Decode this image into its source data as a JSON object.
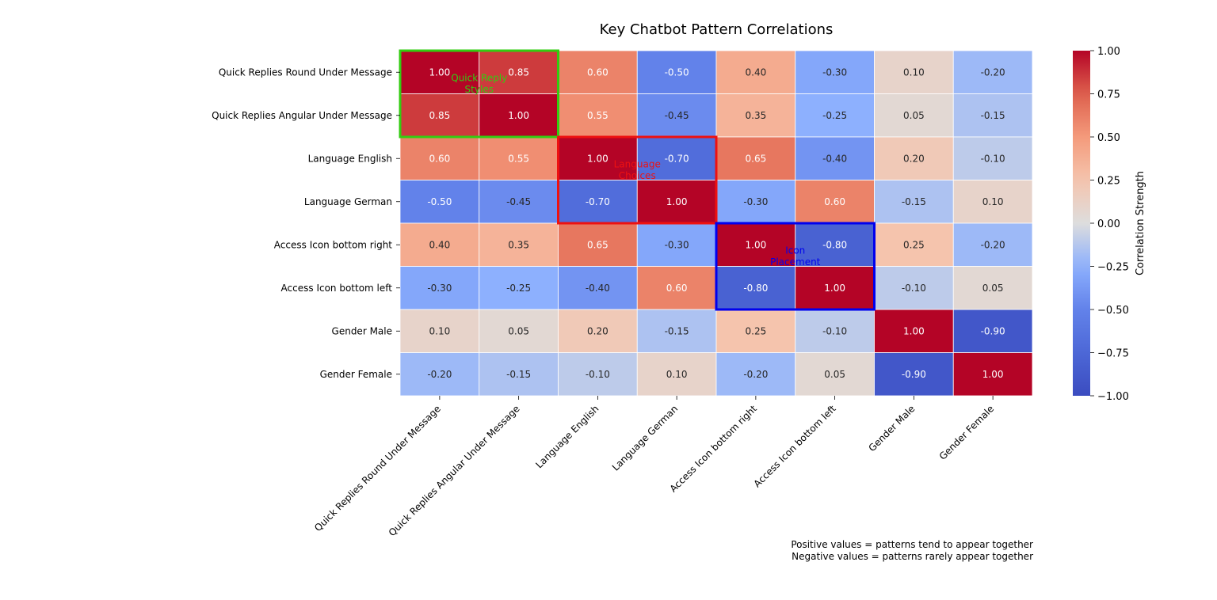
{
  "chart_data": {
    "type": "heatmap",
    "title": "Key Chatbot Pattern Correlations",
    "row_labels": [
      "Quick Replies Round Under Message",
      "Quick Replies Angular Under Message",
      "Language English",
      "Language German",
      "Access Icon bottom right",
      "Access Icon bottom left",
      "Gender Male",
      "Gender Female"
    ],
    "col_labels": [
      "Quick Replies Round Under Message",
      "Quick Replies Angular Under Message",
      "Language English",
      "Language German",
      "Access Icon bottom right",
      "Access Icon bottom left",
      "Gender Male",
      "Gender Female"
    ],
    "values": [
      [
        1.0,
        0.85,
        0.6,
        -0.5,
        0.4,
        -0.3,
        0.1,
        -0.2
      ],
      [
        0.85,
        1.0,
        0.55,
        -0.45,
        0.35,
        -0.25,
        0.05,
        -0.15
      ],
      [
        0.6,
        0.55,
        1.0,
        -0.7,
        0.65,
        -0.4,
        0.2,
        -0.1
      ],
      [
        -0.5,
        -0.45,
        -0.7,
        1.0,
        -0.3,
        0.6,
        -0.15,
        0.1
      ],
      [
        0.4,
        0.35,
        0.65,
        -0.3,
        1.0,
        -0.8,
        0.25,
        -0.2
      ],
      [
        -0.3,
        -0.25,
        -0.4,
        0.6,
        -0.8,
        1.0,
        -0.1,
        0.05
      ],
      [
        0.1,
        0.05,
        0.2,
        -0.15,
        0.25,
        -0.1,
        1.0,
        -0.9
      ],
      [
        -0.2,
        -0.15,
        -0.1,
        0.1,
        -0.2,
        0.05,
        -0.9,
        1.0
      ]
    ],
    "colormap": "coolwarm",
    "vmin": -1.0,
    "vmax": 1.0,
    "colorbar": {
      "label": "Correlation Strength",
      "ticks": [
        "1.00",
        "0.75",
        "0.50",
        "0.25",
        "0.00",
        "−0.25",
        "−0.50",
        "−0.75",
        "−1.00"
      ],
      "tick_values": [
        1.0,
        0.75,
        0.5,
        0.25,
        0.0,
        -0.25,
        -0.5,
        -0.75,
        -1.0
      ]
    },
    "groups": [
      {
        "lines": [
          "Quick Reply",
          "Styles"
        ],
        "start": 0,
        "end": 1,
        "color": "#33cc11"
      },
      {
        "lines": [
          "Language",
          "Choices"
        ],
        "start": 2,
        "end": 3,
        "color": "#ee1111"
      },
      {
        "lines": [
          "Icon",
          "Placement"
        ],
        "start": 4,
        "end": 5,
        "color": "#0000ee"
      }
    ],
    "notes": [
      "Positive values = patterns tend to appear together",
      "Negative values = patterns rarely appear together"
    ],
    "grid": false,
    "legend": "colorbar-right"
  }
}
